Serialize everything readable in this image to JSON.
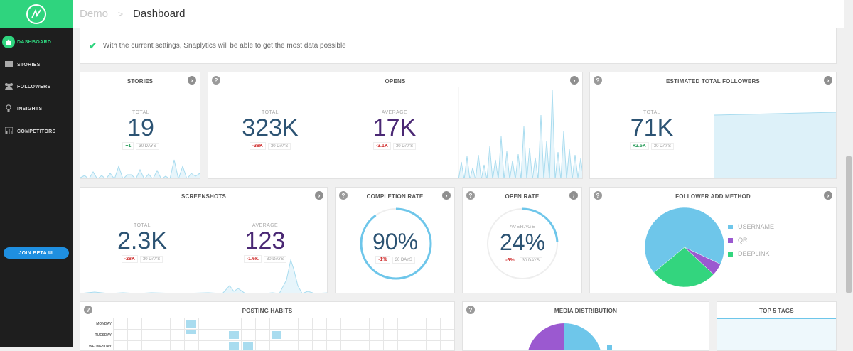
{
  "app": {
    "logo": "snaplytics-logo"
  },
  "sidebar": {
    "items": [
      {
        "label": "DASHBOARD",
        "icon": "home-icon"
      },
      {
        "label": "STORIES",
        "icon": "stories-icon"
      },
      {
        "label": "FOLLOWERS",
        "icon": "followers-icon"
      },
      {
        "label": "INSIGHTS",
        "icon": "lightbulb-icon"
      },
      {
        "label": "COMPETITORS",
        "icon": "bar-chart-icon"
      }
    ],
    "beta_button": "JOIN BETA UI"
  },
  "header": {
    "breadcrumb_root": "Demo",
    "breadcrumb_sep": ">",
    "page_title": "Dashboard"
  },
  "alert": {
    "text": "With the current settings, Snaplytics will be able to get the most data possible"
  },
  "cards": {
    "stories": {
      "title": "STORIES",
      "total_label": "TOTAL",
      "total": "19",
      "delta": "+1",
      "days": "30 DAYS"
    },
    "opens": {
      "title": "OPENS",
      "total_label": "TOTAL",
      "total": "323K",
      "total_delta": "-38K",
      "average_label": "AVERAGE",
      "average": "17K",
      "average_delta": "-3.1K",
      "days": "30 DAYS"
    },
    "followers": {
      "title": "ESTIMATED TOTAL FOLLOWERS",
      "total_label": "TOTAL",
      "total": "71K",
      "delta": "+2.5K",
      "days": "30 DAYS"
    },
    "screenshots": {
      "title": "SCREENSHOTS",
      "total_label": "TOTAL",
      "total": "2.3K",
      "total_delta": "-28K",
      "average_label": "AVERAGE",
      "average": "123",
      "average_delta": "-1.6K",
      "days": "30 DAYS"
    },
    "completion": {
      "title": "COMPLETION RATE",
      "value": "90%",
      "delta": "-1%",
      "days": "30 DAYS",
      "fill": 0.9
    },
    "open_rate": {
      "title": "OPEN RATE",
      "label": "AVERAGE",
      "value": "24%",
      "delta": "-6%",
      "days": "30 DAYS",
      "fill": 0.24
    },
    "follower_method": {
      "title": "FOLLOWER ADD METHOD"
    },
    "posting": {
      "title": "POSTING HABITS",
      "days": [
        "MONDAY",
        "TUESDAY",
        "WEDNESDAY"
      ]
    },
    "media": {
      "title": "MEDIA DISTRIBUTION"
    },
    "tags": {
      "title": "TOP 5 TAGS"
    }
  },
  "chart_data": [
    {
      "type": "pie",
      "title": "FOLLOWER ADD METHOD",
      "categories": [
        "USERNAME",
        "QR",
        "DEEPLINK"
      ],
      "values": [
        68,
        5,
        27
      ],
      "colors": [
        "#6ec6ea",
        "#9b59d0",
        "#33d57e"
      ]
    }
  ],
  "colors": {
    "accent": "#2fd47e",
    "primary_blue": "#2c5373",
    "purple": "#4a2874",
    "spark": "#a9dcef",
    "negative": "#d03030",
    "positive": "#2a9d5c",
    "beta": "#1f8fe0"
  }
}
